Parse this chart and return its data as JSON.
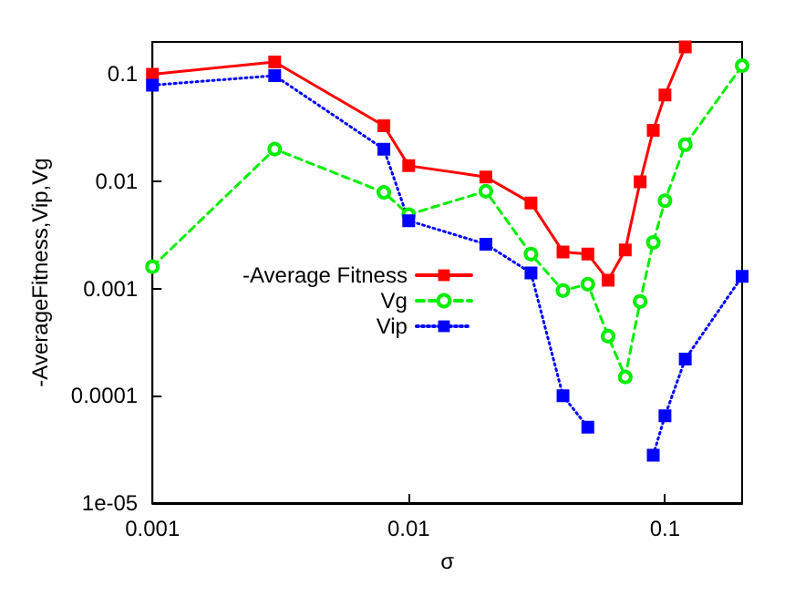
{
  "chart_data": {
    "type": "line",
    "xlabel": "σ",
    "ylabel": "-AverageFitness,Vip,Vg",
    "x": [
      0.001,
      0.003,
      0.008,
      0.01,
      0.02,
      0.03,
      0.04,
      0.05,
      0.06,
      0.07,
      0.08,
      0.09,
      0.1,
      0.12,
      0.2
    ],
    "series": [
      {
        "name": "-Average Fitness",
        "color": "#ff0000",
        "marker": "square",
        "line_style": "solid",
        "values": [
          0.1,
          0.13,
          0.033,
          0.014,
          0.011,
          0.0063,
          0.0022,
          0.0021,
          0.0012,
          0.0023,
          0.0099,
          0.03,
          0.064,
          0.18,
          null
        ]
      },
      {
        "name": "Vg",
        "color": "#00ee00",
        "marker": "circle",
        "line_style": "dashed",
        "values": [
          0.0016,
          0.02,
          0.0079,
          0.0049,
          0.0081,
          0.0021,
          0.00096,
          0.0011,
          0.00036,
          0.00015,
          0.00076,
          0.0027,
          0.0066,
          0.022,
          0.12
        ]
      },
      {
        "name": "Vip",
        "color": "#0000ff",
        "marker": "square",
        "line_style": "dotted",
        "values": [
          0.079,
          0.097,
          0.02,
          0.0043,
          0.0026,
          0.0014,
          0.0001,
          5.1e-05,
          null,
          null,
          null,
          2.8e-05,
          6.5e-05,
          0.00022,
          0.0013
        ]
      }
    ],
    "log": "xy",
    "xlim": [
      0.001,
      0.2
    ],
    "ylim": [
      1e-05,
      0.2
    ],
    "xticks": [
      0.001,
      0.01,
      0.1
    ],
    "yticks": [
      {
        "value": 1e-05,
        "label": "1e-05"
      },
      0.0001,
      0.001,
      0.01,
      0.1
    ],
    "grid": false,
    "legend": "center"
  }
}
